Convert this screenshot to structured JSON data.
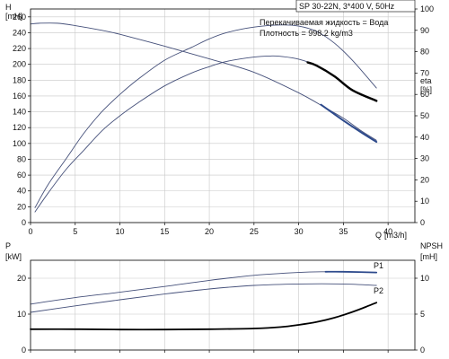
{
  "colors": {
    "curve_light": "#45507a",
    "curve_dark": "#000000",
    "curve_blue": "#2d4a8c",
    "grid": "#c8c8c8",
    "axis": "#000000"
  },
  "header": {
    "model": "SP 30-22N, 3*400 V, 50Hz",
    "liquid": "Перекачиваемая жидкость = Вода",
    "density": "Плотность = 998.2 kg/m3"
  },
  "chart_data": [
    {
      "type": "line",
      "name": "head-efficiency",
      "left_axis": {
        "label_top": "H",
        "label_unit": "[mH]",
        "ticks": [
          "0",
          "20",
          "40",
          "60",
          "80",
          "100",
          "120",
          "140",
          "160",
          "180",
          "200",
          "220",
          "240",
          "260"
        ],
        "range": [
          0,
          270
        ]
      },
      "right_axis": {
        "label_top": "eta",
        "label_unit": "[%]",
        "ticks": [
          "0",
          "10",
          "20",
          "30",
          "40",
          "50",
          "60",
          "70",
          "80",
          "90",
          "100"
        ],
        "range": [
          0,
          100
        ]
      },
      "x_axis": {
        "label_q": "Q",
        "label_unit": "[m3/h]",
        "ticks": [
          "0",
          "5",
          "10",
          "15",
          "20",
          "25",
          "30",
          "35",
          "40"
        ],
        "range": [
          0,
          43
        ]
      },
      "grid": true,
      "series": [
        {
          "key": "H",
          "axis": "left",
          "color": "light",
          "x": [
            0,
            1,
            3,
            5,
            8,
            10,
            15,
            20,
            25,
            30,
            33,
            35,
            37,
            38.7
          ],
          "y": [
            251,
            252,
            252,
            249,
            243,
            238,
            223,
            207,
            190,
            164,
            145,
            132,
            116,
            104
          ]
        },
        {
          "key": "eta_upper",
          "axis": "right",
          "color": "light",
          "x": [
            0.5,
            2,
            4,
            6,
            8,
            10,
            12,
            15,
            18,
            20,
            22,
            25,
            28,
            30,
            32,
            34,
            36,
            38.7
          ],
          "y": [
            7,
            18,
            30,
            42,
            52,
            60,
            67,
            76,
            82,
            86,
            89,
            91.5,
            92.5,
            92,
            89.5,
            84,
            76,
            63
          ]
        },
        {
          "key": "eta_lower",
          "axis": "right",
          "color": "light",
          "x": [
            0.5,
            2,
            4,
            6,
            8,
            10,
            12,
            15,
            18,
            20,
            22,
            25,
            27,
            28,
            30,
            32,
            34,
            36,
            38.7
          ],
          "y": [
            5,
            14,
            25,
            34,
            43,
            50,
            56,
            64,
            70,
            73,
            75.5,
            77.5,
            78,
            77.8,
            76.5,
            73.5,
            68.5,
            62,
            57
          ]
        },
        {
          "key": "eta_lower_dark",
          "axis": "right",
          "color": "dark",
          "width": 2.4,
          "x": [
            31,
            32,
            34,
            36,
            38.7
          ],
          "y": [
            75,
            73.5,
            68.5,
            62,
            57
          ]
        },
        {
          "key": "H_dark",
          "axis": "left",
          "color": "blue",
          "width": 2.0,
          "x": [
            32.5,
            33.5,
            35,
            37,
            38.7
          ],
          "y": [
            149,
            141,
            129,
            114,
            102
          ]
        }
      ]
    },
    {
      "type": "line",
      "name": "power-npsh",
      "left_axis": {
        "label_top": "P",
        "label_unit": "[kW]",
        "ticks": [
          "0",
          "10",
          "20"
        ],
        "range": [
          0,
          25
        ]
      },
      "right_axis": {
        "label_top": "NPSH",
        "label_unit": "[mH]",
        "ticks": [
          "0",
          "5",
          "10"
        ],
        "range": [
          0,
          12.5
        ]
      },
      "x_axis": {
        "range": [
          0,
          43
        ]
      },
      "grid": true,
      "series": [
        {
          "key": "P1",
          "axis": "left",
          "color": "light",
          "x": [
            0,
            5,
            10,
            15,
            20,
            25,
            30,
            33,
            35,
            38.7
          ],
          "y": [
            12.8,
            14.6,
            16.1,
            17.7,
            19.4,
            20.8,
            21.6,
            21.8,
            21.8,
            21.6
          ]
        },
        {
          "key": "P1_dark",
          "axis": "left",
          "color": "blue",
          "width": 1.8,
          "x": [
            33,
            35,
            38.7
          ],
          "y": [
            21.8,
            21.8,
            21.6
          ]
        },
        {
          "key": "P2",
          "axis": "left",
          "color": "light",
          "x": [
            0,
            5,
            10,
            15,
            20,
            25,
            30,
            35,
            38.7
          ],
          "y": [
            10.5,
            12.3,
            14.0,
            15.6,
            17.0,
            18.0,
            18.4,
            18.4,
            18.0
          ]
        },
        {
          "key": "NPSH",
          "axis": "right",
          "color": "dark",
          "width": 1.8,
          "x": [
            0,
            5,
            10,
            15,
            20,
            25,
            28,
            30,
            32,
            34,
            36,
            37.5,
            38.7
          ],
          "y": [
            2.9,
            2.9,
            2.85,
            2.85,
            2.9,
            3.0,
            3.2,
            3.5,
            3.9,
            4.5,
            5.3,
            6.0,
            6.6
          ]
        }
      ],
      "series_labels": [
        "P1",
        "P2"
      ]
    }
  ]
}
